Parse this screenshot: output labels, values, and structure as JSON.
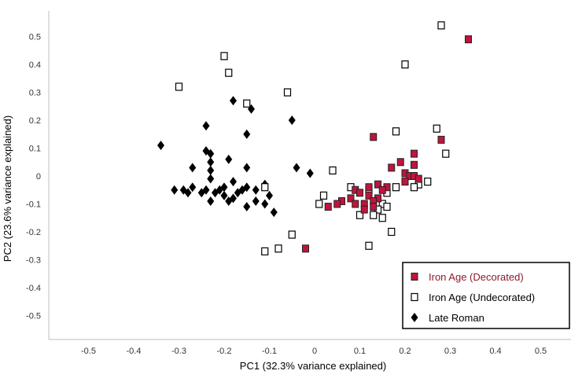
{
  "chart_data": {
    "type": "scatter",
    "xlabel": "PC1 (32.3% variance explained)",
    "ylabel": "PC2 (23.6% variance explained)",
    "xlim": [
      -0.6,
      0.56
    ],
    "ylim": [
      -0.58,
      0.58
    ],
    "xticks": [
      "-0.5",
      "-0.4",
      "-0.3",
      "-0.2",
      "-0.1",
      "0",
      "0.1",
      "0.2",
      "0.3",
      "0.4",
      "0.5"
    ],
    "xtick_values": [
      -0.5,
      -0.4,
      -0.3,
      -0.2,
      -0.1,
      0,
      0.1,
      0.2,
      0.3,
      0.4,
      0.5
    ],
    "yticks": [
      "0.5",
      "0.4",
      "0.3",
      "0.2",
      "0.1",
      "0",
      "-0.1",
      "-0.2",
      "-0.3",
      "-0.4",
      "-0.5"
    ],
    "ytick_values": [
      0.5,
      0.4,
      0.3,
      0.2,
      0.1,
      0,
      -0.1,
      -0.2,
      -0.3,
      -0.4,
      -0.5
    ],
    "grid": false,
    "legend_position": "bottom-right",
    "series": [
      {
        "name": "Iron Age (Decorated)",
        "marker": "square-filled",
        "color": "#c0143c",
        "points": [
          [
            0.34,
            0.49
          ],
          [
            0.13,
            0.14
          ],
          [
            0.28,
            0.13
          ],
          [
            0.22,
            0.08
          ],
          [
            0.19,
            0.05
          ],
          [
            0.22,
            0.04
          ],
          [
            0.17,
            0.03
          ],
          [
            0.2,
            0.01
          ],
          [
            0.21,
            0.0
          ],
          [
            0.22,
            0.0
          ],
          [
            0.23,
            -0.01
          ],
          [
            0.2,
            -0.02
          ],
          [
            0.14,
            -0.03
          ],
          [
            0.16,
            -0.04
          ],
          [
            0.12,
            -0.04
          ],
          [
            0.09,
            -0.05
          ],
          [
            0.15,
            -0.05
          ],
          [
            0.1,
            -0.06
          ],
          [
            0.12,
            -0.07
          ],
          [
            0.14,
            -0.08
          ],
          [
            0.08,
            -0.08
          ],
          [
            0.13,
            -0.09
          ],
          [
            0.06,
            -0.09
          ],
          [
            0.11,
            -0.1
          ],
          [
            0.05,
            -0.1
          ],
          [
            0.09,
            -0.1
          ],
          [
            0.03,
            -0.11
          ],
          [
            0.11,
            -0.12
          ],
          [
            0.13,
            -0.11
          ],
          [
            -0.02,
            -0.26
          ]
        ]
      },
      {
        "name": "Iron Age (Undecorated)",
        "marker": "square-open",
        "color": "#000000",
        "points": [
          [
            0.28,
            0.54
          ],
          [
            0.2,
            0.4
          ],
          [
            -0.2,
            0.43
          ],
          [
            -0.19,
            0.37
          ],
          [
            -0.3,
            0.32
          ],
          [
            -0.15,
            0.26
          ],
          [
            -0.06,
            0.3
          ],
          [
            0.18,
            0.16
          ],
          [
            0.27,
            0.17
          ],
          [
            0.29,
            0.08
          ],
          [
            0.04,
            0.02
          ],
          [
            0.25,
            -0.02
          ],
          [
            0.23,
            -0.03
          ],
          [
            0.22,
            -0.04
          ],
          [
            0.18,
            -0.04
          ],
          [
            0.08,
            -0.04
          ],
          [
            0.12,
            -0.05
          ],
          [
            0.16,
            -0.06
          ],
          [
            0.02,
            -0.07
          ],
          [
            0.15,
            -0.1
          ],
          [
            0.01,
            -0.1
          ],
          [
            0.16,
            -0.11
          ],
          [
            0.14,
            -0.12
          ],
          [
            0.13,
            -0.14
          ],
          [
            0.1,
            -0.14
          ],
          [
            0.15,
            -0.15
          ],
          [
            0.17,
            -0.2
          ],
          [
            -0.05,
            -0.21
          ],
          [
            0.12,
            -0.25
          ],
          [
            -0.08,
            -0.26
          ],
          [
            -0.11,
            -0.27
          ],
          [
            -0.11,
            -0.04
          ]
        ]
      },
      {
        "name": "Late Roman",
        "marker": "diamond-filled",
        "color": "#000000",
        "points": [
          [
            -0.18,
            0.27
          ],
          [
            -0.14,
            0.24
          ],
          [
            -0.05,
            0.2
          ],
          [
            -0.24,
            0.18
          ],
          [
            -0.15,
            0.15
          ],
          [
            -0.34,
            0.11
          ],
          [
            -0.24,
            0.09
          ],
          [
            -0.23,
            0.08
          ],
          [
            -0.19,
            0.06
          ],
          [
            -0.23,
            0.05
          ],
          [
            -0.27,
            0.03
          ],
          [
            -0.15,
            0.03
          ],
          [
            -0.23,
            0.02
          ],
          [
            -0.04,
            0.03
          ],
          [
            -0.01,
            0.01
          ],
          [
            -0.23,
            -0.01
          ],
          [
            -0.18,
            -0.02
          ],
          [
            -0.27,
            -0.04
          ],
          [
            -0.2,
            -0.04
          ],
          [
            -0.15,
            -0.04
          ],
          [
            -0.11,
            -0.03
          ],
          [
            -0.31,
            -0.05
          ],
          [
            -0.29,
            -0.05
          ],
          [
            -0.24,
            -0.05
          ],
          [
            -0.21,
            -0.05
          ],
          [
            -0.16,
            -0.05
          ],
          [
            -0.13,
            -0.05
          ],
          [
            -0.28,
            -0.06
          ],
          [
            -0.25,
            -0.06
          ],
          [
            -0.22,
            -0.06
          ],
          [
            -0.17,
            -0.06
          ],
          [
            -0.2,
            -0.07
          ],
          [
            -0.1,
            -0.07
          ],
          [
            -0.18,
            -0.08
          ],
          [
            -0.13,
            -0.09
          ],
          [
            -0.23,
            -0.09
          ],
          [
            -0.19,
            -0.09
          ],
          [
            -0.11,
            -0.1
          ],
          [
            -0.15,
            -0.11
          ],
          [
            -0.09,
            -0.13
          ]
        ]
      }
    ]
  }
}
